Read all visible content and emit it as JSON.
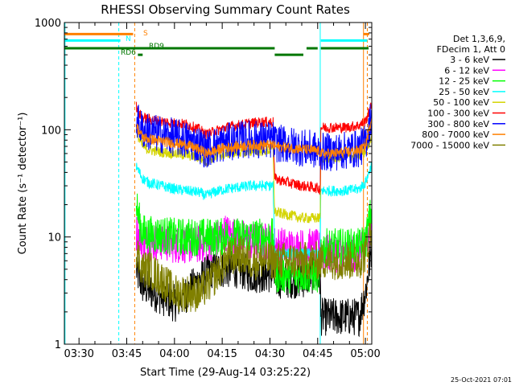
{
  "chart_data": {
    "type": "line",
    "title": "RHESSI Observing Summary Count Rates",
    "xlabel": "Start Time (29-Aug-14 03:25:22)",
    "ylabel": "Count Rate (s⁻¹ detector⁻¹)",
    "yscale": "log",
    "ylim": [
      1,
      1000
    ],
    "xlim_minutes": [
      205.4,
      302.0
    ],
    "x_ticks": [
      {
        "t": 210,
        "label": "03:30"
      },
      {
        "t": 225,
        "label": "03:45"
      },
      {
        "t": 240,
        "label": "04:00"
      },
      {
        "t": 255,
        "label": "04:15"
      },
      {
        "t": 270,
        "label": "04:30"
      },
      {
        "t": 285,
        "label": "04:45"
      },
      {
        "t": 300,
        "label": "05:00"
      }
    ],
    "y_ticks": [
      {
        "v": 1,
        "label": "1"
      },
      {
        "v": 10,
        "label": "10"
      },
      {
        "v": 100,
        "label": "100"
      },
      {
        "v": 1000,
        "label": "1000"
      }
    ],
    "legend": {
      "placement": "right",
      "header": [
        "Det 1,3,6,9,",
        "FDecim 1, Att 0"
      ],
      "entries": [
        {
          "label": "3 - 6 keV",
          "color": "#000000"
        },
        {
          "label": "6 - 12 keV",
          "color": "#ff00ff"
        },
        {
          "label": "12 - 25 keV",
          "color": "#00ff00"
        },
        {
          "label": "25 - 50 keV",
          "color": "#00ffff"
        },
        {
          "label": "50 - 100 keV",
          "color": "#d4d400"
        },
        {
          "label": "100 - 300 keV",
          "color": "#ff0000"
        },
        {
          "label": "300 - 800 keV",
          "color": "#0000ff"
        },
        {
          "label": "800 - 7000 keV",
          "color": "#ff8000"
        },
        {
          "label": "7000 - 15000 keV",
          "color": "#808000"
        }
      ]
    },
    "flags": [
      {
        "label": "S",
        "color": "#ff8000",
        "segments": [
          [
            205.4,
            227.0
          ],
          [
            299.4,
            301.2
          ]
        ],
        "level": 780
      },
      {
        "label": "N",
        "color": "#00ffff",
        "segments": [
          [
            205.4,
            223.0
          ],
          [
            286.0,
            300.6
          ]
        ],
        "level": 680
      },
      {
        "label": "RD9",
        "color": "#007700",
        "segments": [
          [
            205.4,
            271.5
          ],
          [
            281.5,
            285.0
          ],
          [
            286.0,
            301.0
          ]
        ],
        "level": 575
      },
      {
        "label": "RD6",
        "color": "#007700",
        "segments": [
          [
            228.5,
            230.0
          ],
          [
            271.5,
            280.5
          ]
        ],
        "level": 500
      }
    ],
    "vlines": [
      {
        "t": 205.6,
        "color": "#00ffff",
        "style": "solid"
      },
      {
        "t": 222.5,
        "color": "#00ffff",
        "style": "dashed"
      },
      {
        "t": 227.5,
        "color": "#ff8000",
        "style": "dashed"
      },
      {
        "t": 285.8,
        "color": "#00ffff",
        "style": "solid"
      },
      {
        "t": 299.4,
        "color": "#ff8000",
        "style": "solid"
      },
      {
        "t": 300.6,
        "color": "#ff8000",
        "style": "dashed"
      }
    ],
    "series": [
      {
        "name": "3 - 6 keV",
        "color": "#000000",
        "x": [
          228,
          229,
          230,
          232,
          234,
          236,
          238,
          240,
          244,
          248,
          252,
          256,
          260,
          264,
          268,
          271,
          271.5,
          276,
          280,
          284,
          285.8,
          286,
          290,
          294,
          298,
          300,
          302
        ],
        "y": [
          5,
          4,
          3.5,
          3.2,
          3,
          2.8,
          2.6,
          2.4,
          3,
          4,
          5,
          5,
          5,
          4.5,
          4.5,
          4.5,
          4,
          4,
          4,
          4.5,
          4,
          1.8,
          1.8,
          1.8,
          1.8,
          3,
          8
        ]
      },
      {
        "name": "6 - 12 keV",
        "color": "#ff00ff",
        "x": [
          228,
          229,
          230,
          232,
          236,
          240,
          244,
          248,
          252,
          256,
          260,
          264,
          268,
          271,
          271.5,
          276,
          280,
          284,
          285.8,
          286,
          290,
          294,
          298,
          300,
          302
        ],
        "y": [
          11,
          10,
          9,
          9,
          9,
          8.5,
          8.5,
          8.5,
          9,
          11,
          10,
          9,
          9,
          9,
          8.5,
          8,
          8,
          8,
          7.5,
          7,
          7,
          7,
          7,
          8,
          14
        ]
      },
      {
        "name": "12 - 25 keV",
        "color": "#00ff00",
        "x": [
          228,
          229,
          230,
          232,
          236,
          240,
          244,
          248,
          252,
          256,
          260,
          264,
          268,
          271,
          271.5,
          276,
          280,
          284,
          285.8,
          286,
          290,
          294,
          298,
          300,
          302
        ],
        "y": [
          20,
          14,
          11,
          10.5,
          10.5,
          10,
          10,
          10,
          10,
          10,
          10,
          10,
          10,
          10,
          4.5,
          4.5,
          4.5,
          4.5,
          4.5,
          8,
          8,
          8,
          8,
          9,
          18
        ]
      },
      {
        "name": "25 - 50 keV",
        "color": "#00ffff",
        "x": [
          228,
          229,
          230,
          232,
          236,
          240,
          244,
          248,
          250,
          252,
          256,
          260,
          264,
          268,
          271,
          271.5,
          276,
          280,
          284,
          285.8,
          286,
          290,
          294,
          298,
          300,
          302
        ],
        "y": [
          45,
          40,
          35,
          32,
          30,
          28,
          27,
          26,
          24,
          26,
          28,
          29,
          30,
          30,
          30,
          7,
          7,
          7,
          7,
          7,
          27,
          27,
          27,
          28,
          32,
          48
        ]
      },
      {
        "name": "50 - 100 keV",
        "color": "#d4d400",
        "x": [
          228,
          229,
          230,
          232,
          236,
          240,
          244,
          248,
          250,
          252,
          256,
          260,
          264,
          268,
          271,
          271.5,
          276,
          280,
          284,
          285.8,
          286,
          290,
          294,
          298,
          300,
          302
        ],
        "y": [
          100,
          80,
          70,
          65,
          62,
          60,
          58,
          55,
          50,
          55,
          60,
          62,
          63,
          64,
          65,
          17,
          16,
          15,
          15,
          15,
          55,
          55,
          55,
          58,
          62,
          90
        ]
      },
      {
        "name": "100 - 300 keV",
        "color": "#ff0000",
        "x": [
          228,
          229,
          230,
          232,
          236,
          240,
          244,
          248,
          250,
          252,
          256,
          260,
          264,
          268,
          271,
          271.5,
          276,
          280,
          284,
          285.8,
          286,
          290,
          294,
          298,
          300,
          302
        ],
        "y": [
          165,
          140,
          130,
          125,
          120,
          115,
          112,
          100,
          90,
          95,
          105,
          110,
          115,
          118,
          118,
          35,
          32,
          30,
          29,
          28,
          105,
          105,
          105,
          110,
          120,
          170
        ]
      },
      {
        "name": "300 - 800 keV",
        "color": "#0000ff",
        "x": [
          228,
          229,
          230,
          232,
          236,
          240,
          244,
          248,
          250,
          252,
          256,
          260,
          264,
          268,
          271,
          271.5,
          276,
          280,
          284,
          285.8,
          286,
          290,
          294,
          298,
          300,
          302
        ],
        "y": [
          130,
          110,
          100,
          95,
          90,
          85,
          80,
          72,
          65,
          70,
          76,
          80,
          82,
          80,
          80,
          75,
          72,
          68,
          65,
          60,
          62,
          62,
          64,
          67,
          75,
          140
        ]
      },
      {
        "name": "800 - 7000 keV",
        "color": "#ff8000",
        "x": [
          228,
          229,
          230,
          232,
          236,
          240,
          244,
          248,
          250,
          252,
          256,
          260,
          264,
          268,
          271,
          271.5,
          276,
          280,
          284,
          285.8,
          286,
          290,
          294,
          298,
          300,
          302
        ],
        "y": [
          110,
          95,
          85,
          82,
          78,
          75,
          72,
          65,
          60,
          63,
          68,
          70,
          72,
          72,
          72,
          70,
          68,
          66,
          64,
          62,
          60,
          60,
          62,
          64,
          70,
          130
        ]
      },
      {
        "name": "7000 - 15000 keV",
        "color": "#808000",
        "x": [
          228,
          229,
          230,
          232,
          236,
          240,
          244,
          248,
          252,
          256,
          260,
          264,
          268,
          271,
          271.5,
          276,
          280,
          284,
          285.8,
          286,
          290,
          294,
          298,
          300,
          302
        ],
        "y": [
          8,
          6,
          5,
          5,
          4,
          3,
          3,
          3,
          4,
          6,
          7,
          6,
          6,
          6,
          6,
          6,
          6,
          6,
          6,
          6,
          6,
          6,
          6,
          7,
          12
        ]
      }
    ]
  },
  "footer": {
    "date_stamp": "25-Oct-2021 07:01"
  }
}
